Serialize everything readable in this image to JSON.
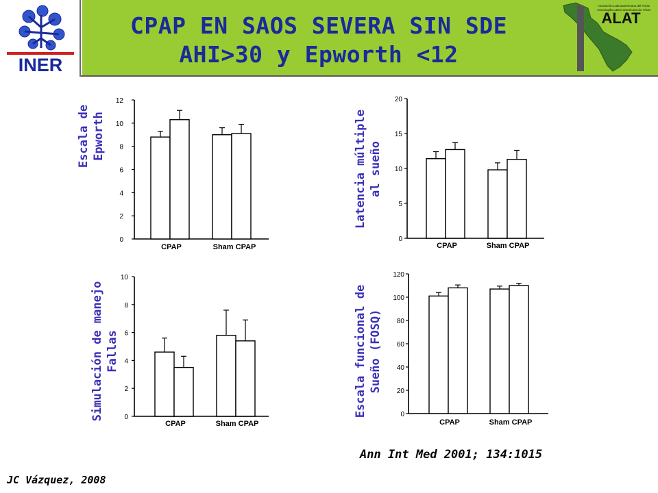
{
  "header": {
    "title_line1": "CPAP EN SAOS SEVERA SIN SDE",
    "title_line2": "AHI>30 y Epworth <12",
    "logo_left_text": "INER",
    "logo_right_text": "ALAT",
    "logo_right_small_line1": "Asociación Latinoamericana del Tórax",
    "logo_right_small_line2": "Associação Latino-americana do Tórax"
  },
  "citation": "Ann Int Med 2001; 134:1015",
  "author": "JC Vázquez, 2008",
  "colors": {
    "title_band": "#99cc33",
    "title_text": "#1a2a9a",
    "axis_label": "#3a30b8",
    "bar_stroke": "#000000",
    "bar_fill": "#ffffff"
  },
  "chart_data": [
    {
      "type": "bar",
      "ylabel": "Escala de Epworth",
      "categories": [
        "CPAP",
        "Sham CPAP"
      ],
      "yticks": [
        "0",
        "2",
        "4",
        "6",
        "8",
        "10",
        "12"
      ],
      "ylim": [
        0,
        12
      ],
      "series": [
        {
          "values": [
            8.8,
            10.3
          ],
          "errors": [
            0.5,
            0.8
          ]
        },
        {
          "values": [
            9.0,
            9.1
          ],
          "errors": [
            0.6,
            0.8
          ]
        }
      ]
    },
    {
      "type": "bar",
      "ylabel": "Latencia múltiple al sueño",
      "categories": [
        "CPAP",
        "Sham CPAP"
      ],
      "yticks": [
        "0",
        "5",
        "10",
        "15",
        "20"
      ],
      "ylim": [
        0,
        20
      ],
      "series": [
        {
          "values": [
            11.4,
            12.7
          ],
          "errors": [
            1.0,
            1.0
          ]
        },
        {
          "values": [
            9.8,
            11.3
          ],
          "errors": [
            1.0,
            1.3
          ]
        }
      ]
    },
    {
      "type": "bar",
      "ylabel": "Simulación de manejo Fallas",
      "categories": [
        "CPAP",
        "Sham CPAP"
      ],
      "yticks": [
        "0",
        "2",
        "4",
        "6",
        "8",
        "10"
      ],
      "ylim": [
        0,
        10
      ],
      "series": [
        {
          "values": [
            4.6,
            3.5
          ],
          "errors": [
            1.0,
            0.8
          ]
        },
        {
          "values": [
            5.8,
            5.4
          ],
          "errors": [
            1.8,
            1.5
          ]
        }
      ]
    },
    {
      "type": "bar",
      "ylabel": "Escala funcional de Sueño (FOSQ)",
      "categories": [
        "CPAP",
        "Sham CPAP"
      ],
      "yticks": [
        "0",
        "20",
        "40",
        "60",
        "80",
        "100",
        "120"
      ],
      "ylim": [
        0,
        120
      ],
      "series": [
        {
          "values": [
            101,
            108
          ],
          "errors": [
            3,
            2.5
          ]
        },
        {
          "values": [
            107,
            110
          ],
          "errors": [
            2.5,
            2
          ]
        }
      ]
    }
  ]
}
